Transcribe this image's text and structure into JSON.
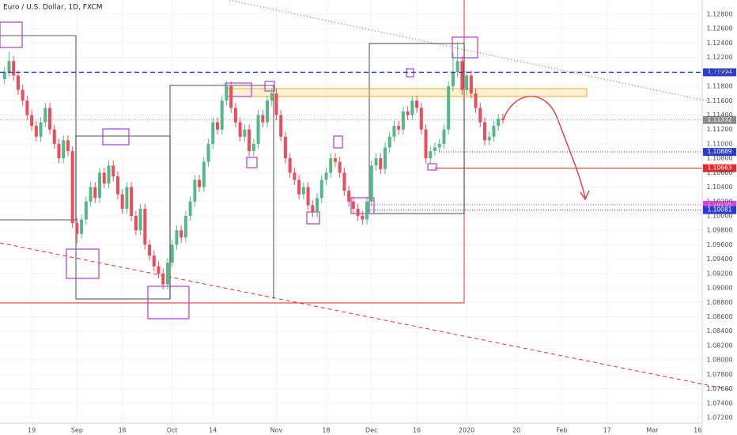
{
  "chart_data": {
    "type": "candlestick",
    "title": "Euro / U.S. Dollar, 1D, FXCM",
    "up_color": "#53b987",
    "down_color": "#eb4d5c",
    "xlim": [
      -7,
      148
    ],
    "ylim": [
      1.06958,
      1.12998
    ],
    "xticks": [
      {
        "value": 0,
        "label": "19"
      },
      {
        "value": 10,
        "label": "Sep"
      },
      {
        "value": 20,
        "label": "16"
      },
      {
        "value": 31,
        "label": "Oct"
      },
      {
        "value": 40,
        "label": "14"
      },
      {
        "value": 54,
        "label": "Nov"
      },
      {
        "value": 65,
        "label": "18"
      },
      {
        "value": 75,
        "label": "Dec"
      },
      {
        "value": 85,
        "label": "16"
      },
      {
        "value": 96,
        "label": "2020"
      },
      {
        "value": 107,
        "label": "20"
      },
      {
        "value": 117,
        "label": "Feb"
      },
      {
        "value": 127,
        "label": "17"
      },
      {
        "value": 137,
        "label": "Mar"
      },
      {
        "value": 147,
        "label": "16"
      }
    ],
    "yticks": [
      {
        "value": 1.072,
        "label": "1.07200"
      },
      {
        "value": 1.074,
        "label": "1.07400"
      },
      {
        "value": 1.076,
        "label": "1.07600"
      },
      {
        "value": 1.078,
        "label": "1.07800"
      },
      {
        "value": 1.08,
        "label": "1.08000"
      },
      {
        "value": 1.082,
        "label": "1.08200"
      },
      {
        "value": 1.084,
        "label": "1.08400"
      },
      {
        "value": 1.086,
        "label": "1.08600"
      },
      {
        "value": 1.088,
        "label": "1.08800"
      },
      {
        "value": 1.09,
        "label": "1.09000"
      },
      {
        "value": 1.092,
        "label": "1.09200"
      },
      {
        "value": 1.094,
        "label": "1.09400"
      },
      {
        "value": 1.096,
        "label": "1.09600"
      },
      {
        "value": 1.098,
        "label": "1.09800"
      },
      {
        "value": 1.1,
        "label": "1.10000"
      },
      {
        "value": 1.102,
        "label": "1.10200"
      },
      {
        "value": 1.104,
        "label": "1.10400"
      },
      {
        "value": 1.106,
        "label": "1.10600"
      },
      {
        "value": 1.108,
        "label": "1.10800"
      },
      {
        "value": 1.11,
        "label": "1.11000"
      },
      {
        "value": 1.112,
        "label": "1.11200"
      },
      {
        "value": 1.114,
        "label": "1.11400"
      },
      {
        "value": 1.116,
        "label": "1.11600"
      },
      {
        "value": 1.118,
        "label": "1.11800"
      },
      {
        "value": 1.12,
        "label": "1.12000"
      },
      {
        "value": 1.122,
        "label": "1.12200"
      },
      {
        "value": 1.124,
        "label": "1.12400"
      },
      {
        "value": 1.126,
        "label": "1.12600"
      },
      {
        "value": 1.128,
        "label": "1.12800"
      }
    ],
    "levels": [
      {
        "value": 1.11994,
        "color": "#2a3bd6",
        "style": "dashed"
      },
      {
        "value": 1.11332,
        "color": "#8a8a8a",
        "style": "dotted"
      },
      {
        "value": 1.10889,
        "color": "#2a3bd6",
        "style": "dotted"
      },
      {
        "value": 1.10663,
        "color": "#e8292b",
        "style": "solid"
      },
      {
        "value": 1.10155,
        "color": "#e040e0",
        "style": "dotted"
      },
      {
        "value": 1.10081,
        "color": "#2a3bd6",
        "style": "dotted"
      }
    ],
    "x": [
      -6,
      -5,
      -4,
      -3,
      -2,
      -1,
      0,
      1,
      2,
      3,
      4,
      5,
      6,
      7,
      8,
      9,
      10,
      11,
      12,
      13,
      14,
      15,
      16,
      17,
      18,
      19,
      20,
      21,
      22,
      23,
      24,
      25,
      26,
      27,
      28,
      29,
      30,
      31,
      32,
      33,
      34,
      35,
      36,
      37,
      38,
      39,
      40,
      41,
      42,
      43,
      44,
      45,
      46,
      47,
      48,
      49,
      50,
      51,
      52,
      53,
      54,
      55,
      56,
      57,
      58,
      59,
      60,
      61,
      62,
      63,
      64,
      65,
      66,
      67,
      68,
      69,
      70,
      71,
      72,
      73,
      74,
      75,
      76,
      77,
      78,
      79,
      80,
      81,
      82,
      83,
      84,
      85,
      86,
      87,
      88,
      89,
      90,
      91,
      92,
      93,
      94,
      95,
      96,
      97,
      98,
      99,
      100,
      101,
      102,
      103,
      104
    ],
    "ohlc": [
      [
        1.119,
        1.1207,
        1.1183,
        1.12
      ],
      [
        1.12,
        1.1228,
        1.1193,
        1.1215
      ],
      [
        1.1215,
        1.1222,
        1.1188,
        1.1195
      ],
      [
        1.1195,
        1.1202,
        1.1168,
        1.1175
      ],
      [
        1.1175,
        1.1182,
        1.1153,
        1.116
      ],
      [
        1.116,
        1.1167,
        1.1133,
        1.114
      ],
      [
        1.114,
        1.1147,
        1.1118,
        1.1125
      ],
      [
        1.1125,
        1.1132,
        1.1103,
        1.111
      ],
      [
        1.111,
        1.1137,
        1.1103,
        1.113
      ],
      [
        1.113,
        1.1157,
        1.1123,
        1.115
      ],
      [
        1.115,
        1.1157,
        1.1113,
        1.112
      ],
      [
        1.112,
        1.1127,
        1.1093,
        1.11
      ],
      [
        1.11,
        1.1107,
        1.1073,
        1.108
      ],
      [
        1.108,
        1.1112,
        1.1073,
        1.1105
      ],
      [
        1.1105,
        1.1112,
        1.1083,
        1.109
      ],
      [
        1.109,
        1.1097,
        1.0983,
        1.099
      ],
      [
        1.099,
        1.0997,
        1.0962,
        1.0975
      ],
      [
        1.0975,
        1.1002,
        1.0968,
        1.0995
      ],
      [
        1.0995,
        1.1027,
        1.0988,
        1.102
      ],
      [
        1.102,
        1.1047,
        1.1013,
        1.104
      ],
      [
        1.104,
        1.1047,
        1.1018,
        1.1025
      ],
      [
        1.1025,
        1.1067,
        1.1018,
        1.106
      ],
      [
        1.106,
        1.1067,
        1.1038,
        1.1045
      ],
      [
        1.1045,
        1.1077,
        1.1038,
        1.107
      ],
      [
        1.107,
        1.1077,
        1.1048,
        1.1055
      ],
      [
        1.1055,
        1.1062,
        1.1023,
        1.103
      ],
      [
        1.103,
        1.1037,
        1.1003,
        1.101
      ],
      [
        1.101,
        1.1047,
        1.1003,
        1.104
      ],
      [
        1.104,
        1.1047,
        1.0993,
        1.1
      ],
      [
        1.1,
        1.1007,
        1.0973,
        1.098
      ],
      [
        1.098,
        1.1017,
        1.0973,
        1.101
      ],
      [
        1.101,
        1.1017,
        1.0953,
        1.096
      ],
      [
        1.096,
        1.0967,
        1.0938,
        1.0945
      ],
      [
        1.0945,
        1.0952,
        1.0923,
        1.093
      ],
      [
        1.093,
        1.0937,
        1.0913,
        1.092
      ],
      [
        1.092,
        1.0927,
        1.0898,
        1.0905
      ],
      [
        1.0905,
        1.0942,
        1.0898,
        1.0935
      ],
      [
        1.0935,
        1.0967,
        1.0928,
        1.096
      ],
      [
        1.096,
        1.0987,
        1.0953,
        1.098
      ],
      [
        1.098,
        1.0987,
        1.0963,
        1.097
      ],
      [
        1.097,
        1.1007,
        1.0963,
        1.1
      ],
      [
        1.1,
        1.1027,
        1.0993,
        1.102
      ],
      [
        1.102,
        1.1057,
        1.1013,
        1.105
      ],
      [
        1.105,
        1.1057,
        1.1033,
        1.104
      ],
      [
        1.104,
        1.1082,
        1.1033,
        1.1075
      ],
      [
        1.1075,
        1.1107,
        1.1068,
        1.11
      ],
      [
        1.11,
        1.1137,
        1.1093,
        1.113
      ],
      [
        1.113,
        1.1137,
        1.1113,
        1.112
      ],
      [
        1.112,
        1.1167,
        1.1113,
        1.116
      ],
      [
        1.116,
        1.1187,
        1.1153,
        1.118
      ],
      [
        1.118,
        1.1187,
        1.1143,
        1.115
      ],
      [
        1.115,
        1.1157,
        1.1123,
        1.113
      ],
      [
        1.113,
        1.1137,
        1.1103,
        1.111
      ],
      [
        1.111,
        1.1127,
        1.1103,
        1.112
      ],
      [
        1.112,
        1.1127,
        1.1083,
        1.109
      ],
      [
        1.109,
        1.1107,
        1.1083,
        1.11
      ],
      [
        1.11,
        1.1147,
        1.1093,
        1.114
      ],
      [
        1.114,
        1.1147,
        1.1123,
        1.113
      ],
      [
        1.113,
        1.1167,
        1.1123,
        1.116
      ],
      [
        1.116,
        1.1177,
        1.1153,
        1.117
      ],
      [
        1.117,
        1.1177,
        1.1133,
        1.114
      ],
      [
        1.114,
        1.1147,
        1.1103,
        1.111
      ],
      [
        1.111,
        1.1117,
        1.1073,
        1.108
      ],
      [
        1.108,
        1.1087,
        1.1053,
        1.106
      ],
      [
        1.106,
        1.1067,
        1.1043,
        1.105
      ],
      [
        1.105,
        1.1057,
        1.1023,
        1.103
      ],
      [
        1.103,
        1.1047,
        1.1023,
        1.104
      ],
      [
        1.104,
        1.1047,
        1.1008,
        1.1015
      ],
      [
        1.1015,
        1.1022,
        1.0998,
        1.1005
      ],
      [
        1.1005,
        1.1032,
        1.0998,
        1.1025
      ],
      [
        1.1025,
        1.1057,
        1.1018,
        1.105
      ],
      [
        1.105,
        1.1067,
        1.1043,
        1.106
      ],
      [
        1.106,
        1.1087,
        1.1053,
        1.108
      ],
      [
        1.108,
        1.1087,
        1.1068,
        1.1075
      ],
      [
        1.1075,
        1.1082,
        1.1053,
        1.106
      ],
      [
        1.106,
        1.1067,
        1.1028,
        1.1035
      ],
      [
        1.1035,
        1.1042,
        1.1013,
        1.102
      ],
      [
        1.102,
        1.1027,
        1.1003,
        1.101
      ],
      [
        1.101,
        1.1017,
        1.0993,
        1.1
      ],
      [
        1.1,
        1.1007,
        1.0988,
        1.0995
      ],
      [
        1.0995,
        1.1027,
        1.0988,
        1.102
      ],
      [
        1.102,
        1.1077,
        1.1013,
        1.107
      ],
      [
        1.107,
        1.1087,
        1.1063,
        1.108
      ],
      [
        1.108,
        1.1087,
        1.1058,
        1.1065
      ],
      [
        1.1065,
        1.1102,
        1.1058,
        1.1095
      ],
      [
        1.1095,
        1.1117,
        1.1088,
        1.111
      ],
      [
        1.111,
        1.1132,
        1.1103,
        1.1125
      ],
      [
        1.1125,
        1.1132,
        1.1113,
        1.112
      ],
      [
        1.112,
        1.1152,
        1.1113,
        1.1145
      ],
      [
        1.1145,
        1.1152,
        1.1133,
        1.114
      ],
      [
        1.114,
        1.1167,
        1.1133,
        1.116
      ],
      [
        1.116,
        1.1167,
        1.1143,
        1.115
      ],
      [
        1.115,
        1.1157,
        1.1113,
        1.112
      ],
      [
        1.112,
        1.1127,
        1.1073,
        1.108
      ],
      [
        1.108,
        1.1097,
        1.1073,
        1.109
      ],
      [
        1.109,
        1.1102,
        1.1083,
        1.1095
      ],
      [
        1.1095,
        1.1107,
        1.1088,
        1.11
      ],
      [
        1.11,
        1.1127,
        1.1093,
        1.112
      ],
      [
        1.112,
        1.1187,
        1.1113,
        1.118
      ],
      [
        1.118,
        1.1227,
        1.1173,
        1.12
      ],
      [
        1.12,
        1.1242,
        1.1193,
        1.1215
      ],
      [
        1.1215,
        1.1222,
        1.1168,
        1.1175
      ],
      [
        1.1175,
        1.1202,
        1.1168,
        1.1195
      ],
      [
        1.1195,
        1.1202,
        1.1163,
        1.117
      ],
      [
        1.117,
        1.1177,
        1.1143,
        1.115
      ],
      [
        1.115,
        1.1157,
        1.1123,
        1.113
      ],
      [
        1.113,
        1.1137,
        1.1098,
        1.1105
      ],
      [
        1.1105,
        1.1117,
        1.1098,
        1.111
      ],
      [
        1.111,
        1.1132,
        1.1103,
        1.1125
      ],
      [
        1.1125,
        1.1142,
        1.1118,
        1.1135
      ],
      [
        1.1135,
        1.1142,
        1.1128,
        1.1133
      ]
    ]
  }
}
